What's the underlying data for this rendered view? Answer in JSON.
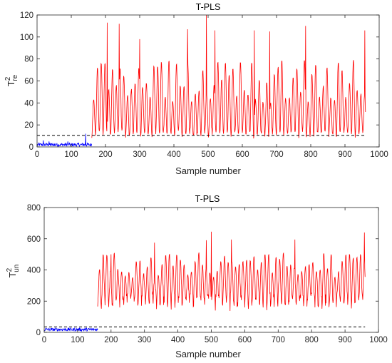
{
  "chart_data": [
    {
      "type": "line",
      "title": "T-PLS",
      "xlabel": "Sample number",
      "ylabel_main": "T",
      "ylabel_sup": "2",
      "ylabel_sub": "re",
      "xlim": [
        0,
        1000
      ],
      "ylim": [
        0,
        120
      ],
      "xticks": [
        0,
        100,
        200,
        300,
        400,
        500,
        600,
        700,
        800,
        900,
        1000
      ],
      "yticks": [
        0,
        20,
        40,
        60,
        80,
        100,
        120
      ],
      "grid": false,
      "threshold": 10.5,
      "series": [
        {
          "color": "#0000ff",
          "x_range": [
            1,
            160
          ],
          "baseline": 2,
          "noise": 1.5,
          "spikes": [
            [
              18,
              6
            ],
            [
              35,
              5
            ],
            [
              90,
              5
            ],
            [
              142,
              12
            ]
          ]
        },
        {
          "color": "#ff0000",
          "x_range": [
            160,
            960
          ],
          "period": 11,
          "low": 12,
          "high_range": [
            40,
            80
          ],
          "peaks": [
            [
              205,
              113
            ],
            [
              240,
              112
            ],
            [
              300,
              98
            ],
            [
              440,
              107
            ],
            [
              495,
              120
            ],
            [
              520,
              106
            ],
            [
              635,
              106
            ],
            [
              680,
              105
            ],
            [
              785,
              110
            ],
            [
              958,
              106
            ]
          ]
        }
      ]
    },
    {
      "type": "line",
      "title": "T-PLS",
      "xlabel": "Sample number",
      "ylabel_main": "T",
      "ylabel_sup": "2",
      "ylabel_sub": "un",
      "xlim": [
        0,
        1000
      ],
      "ylim": [
        0,
        800
      ],
      "xticks": [
        0,
        100,
        200,
        300,
        400,
        500,
        600,
        700,
        800,
        900,
        1000
      ],
      "yticks": [
        0,
        200,
        400,
        600,
        800
      ],
      "grid": false,
      "threshold": 35,
      "series": [
        {
          "color": "#0000ff",
          "x_range": [
            1,
            160
          ],
          "baseline": 18,
          "noise": 10
        },
        {
          "color": "#ff0000",
          "x_range": [
            160,
            960
          ],
          "period": 11,
          "low": 200,
          "high_range": [
            350,
            520
          ],
          "peaks": [
            [
              200,
              500
            ],
            [
              330,
              575
            ],
            [
              485,
              590
            ],
            [
              500,
              645
            ],
            [
              560,
              595
            ],
            [
              750,
              595
            ],
            [
              958,
              640
            ]
          ]
        }
      ]
    }
  ]
}
